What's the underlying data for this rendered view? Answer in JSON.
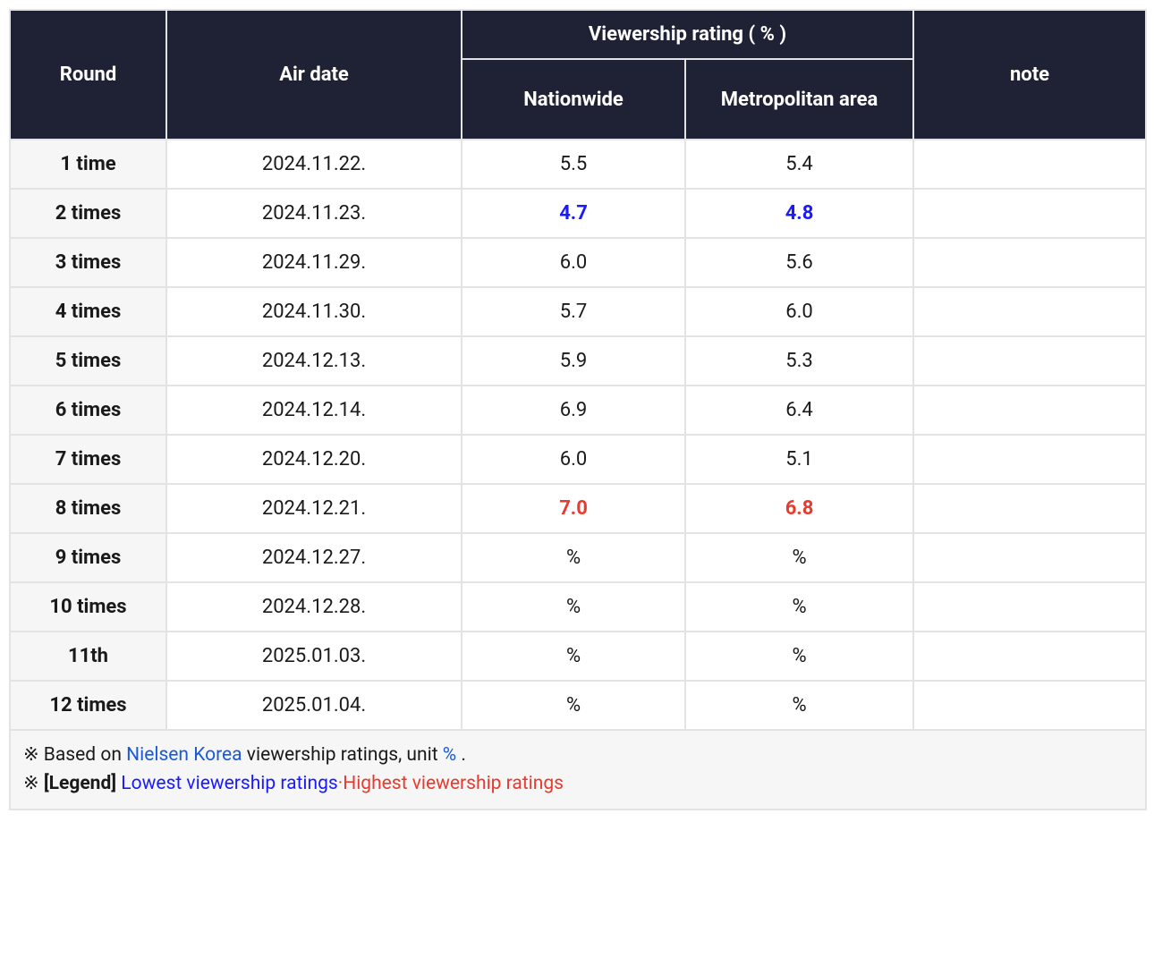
{
  "colors": {
    "header_bg": "#1f2235",
    "header_text": "#ffffff",
    "rowhead_bg": "#f6f6f6",
    "cell_bg": "#ffffff",
    "border": "#e3e3e3",
    "lowest": "#1a1aff",
    "highest": "#e63b2e",
    "link": "#1a5ad9",
    "text": "#1a1a1a"
  },
  "headers": {
    "round": "Round",
    "airdate": "Air date",
    "viewership_group": "Viewership rating ( % )",
    "nationwide": "Nationwide",
    "metro": "Metropolitan area",
    "note": "note"
  },
  "rows": [
    {
      "round": "1 time",
      "date": "2024.11.22.",
      "nation": "5.5",
      "metro": "5.4",
      "note": "",
      "mark": ""
    },
    {
      "round": "2 times",
      "date": "2024.11.23.",
      "nation": "4.7",
      "metro": "4.8",
      "note": "",
      "mark": "lowest"
    },
    {
      "round": "3 times",
      "date": "2024.11.29.",
      "nation": "6.0",
      "metro": "5.6",
      "note": "",
      "mark": ""
    },
    {
      "round": "4 times",
      "date": "2024.11.30.",
      "nation": "5.7",
      "metro": "6.0",
      "note": "",
      "mark": ""
    },
    {
      "round": "5 times",
      "date": "2024.12.13.",
      "nation": "5.9",
      "metro": "5.3",
      "note": "",
      "mark": ""
    },
    {
      "round": "6 times",
      "date": "2024.12.14.",
      "nation": "6.9",
      "metro": "6.4",
      "note": "",
      "mark": ""
    },
    {
      "round": "7 times",
      "date": "2024.12.20.",
      "nation": "6.0",
      "metro": "5.1",
      "note": "",
      "mark": ""
    },
    {
      "round": "8 times",
      "date": "2024.12.21.",
      "nation": "7.0",
      "metro": "6.8",
      "note": "",
      "mark": "highest"
    },
    {
      "round": "9 times",
      "date": "2024.12.27.",
      "nation": "%",
      "metro": "%",
      "note": "",
      "mark": ""
    },
    {
      "round": "10 times",
      "date": "2024.12.28.",
      "nation": "%",
      "metro": "%",
      "note": "",
      "mark": ""
    },
    {
      "round": "11th",
      "date": "2025.01.03.",
      "nation": "%",
      "metro": "%",
      "note": "",
      "mark": ""
    },
    {
      "round": "12 times",
      "date": "2025.01.04.",
      "nation": "%",
      "metro": "%",
      "note": "",
      "mark": ""
    }
  ],
  "footer": {
    "line1_prefix": "※ Based on ",
    "line1_link": "Nielsen Korea",
    "line1_mid": " viewership ratings, unit ",
    "line1_unit": "%",
    "line1_suffix": " .",
    "line2_prefix": "※ ",
    "line2_bold": "[Legend]",
    "line2_low": "Lowest viewership ratings",
    "line2_sep": "·",
    "line2_high": "Highest viewership ratings"
  }
}
